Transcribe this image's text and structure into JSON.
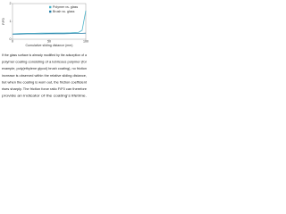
{
  "chart_data": {
    "type": "line",
    "x_label": "Cumulative sliding distance (mm)",
    "y_label": "F/F0",
    "x": [
      0,
      10,
      20,
      30,
      40,
      50,
      60,
      70,
      80,
      90,
      95,
      100
    ],
    "series": [
      {
        "name": "Polymer vs. glass",
        "color": "#4bb3c9",
        "values": [
          0.3,
          0.32,
          0.33,
          0.33,
          0.34,
          0.34,
          0.35,
          0.35,
          0.36,
          0.38,
          0.5,
          1.6
        ]
      },
      {
        "name": "Brush vs. glass",
        "color": "#2a7fa8",
        "values": [
          0.28,
          0.29,
          0.3,
          0.3,
          0.3,
          0.31,
          0.31,
          0.31,
          0.32,
          0.32,
          0.33,
          0.34
        ]
      }
    ],
    "xlim": [
      0,
      100
    ],
    "ylim": [
      0,
      2
    ],
    "xticks": [
      0,
      50,
      100
    ],
    "yticks": [
      0,
      1,
      2
    ],
    "legend": "upper-right"
  },
  "caption": {
    "lines": [
      "If the glass surface is already modified by the adsorption of a",
      "polymer coating consisting of a lubricous polymer (for",
      "example, poly(ethylene glycol) brush coating), no friction",
      "increase is observed within the relative sliding distance,",
      "but when the coating is worn out, the friction coefficient",
      "rises sharply. The friction force ratio F/F0 can therefore",
      "provide an indicator of the coating's lifetime."
    ]
  }
}
